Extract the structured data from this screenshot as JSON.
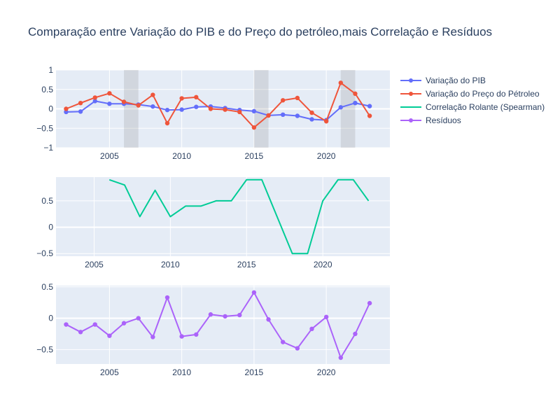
{
  "figure": {
    "title": "Comparação entre Variação do PIB e do Preço do petróleo,mais Correlação e Resíduos"
  },
  "legend": [
    {
      "name": "Variação do PIB",
      "color": "#636efa",
      "marker": true
    },
    {
      "name": "Variação do Preço do Pétroleo",
      "color": "#ef553b",
      "marker": true
    },
    {
      "name": "Correlação Rolante (Spearman)",
      "color": "#00cc96",
      "marker": false
    },
    {
      "name": "Resíduos",
      "color": "#ab63fa",
      "marker": true
    }
  ],
  "chart_data": [
    {
      "type": "line",
      "x": [
        2002,
        2003,
        2004,
        2005,
        2006,
        2007,
        2008,
        2009,
        2010,
        2011,
        2012,
        2013,
        2014,
        2015,
        2016,
        2017,
        2018,
        2019,
        2020,
        2021,
        2022,
        2023
      ],
      "xlim": [
        2001.3,
        2024.4
      ],
      "ylim": [
        -1,
        1
      ],
      "xticks": [
        2005,
        2010,
        2015,
        2020
      ],
      "yticks": [
        -1,
        -0.5,
        0,
        0.5,
        1
      ],
      "ytick_labels": [
        "−1",
        "−0.5",
        "0",
        "0.5",
        "1"
      ],
      "shaded_regions": [
        [
          2006,
          2007
        ],
        [
          2015,
          2016
        ],
        [
          2021,
          2022
        ]
      ],
      "series": [
        {
          "name": "Variação do PIB",
          "color": "#636efa",
          "values": [
            -0.08,
            -0.07,
            0.2,
            0.13,
            0.13,
            0.11,
            0.06,
            -0.03,
            -0.02,
            0.05,
            0.06,
            0.02,
            -0.03,
            -0.06,
            -0.17,
            -0.15,
            -0.18,
            -0.27,
            -0.29,
            0.04,
            0.15,
            0.07
          ]
        },
        {
          "name": "Variação do Preço do Pétroleo",
          "color": "#ef553b",
          "values": [
            0.0,
            0.15,
            0.29,
            0.4,
            0.18,
            0.09,
            0.36,
            -0.37,
            0.27,
            0.3,
            0.0,
            -0.02,
            -0.08,
            -0.48,
            -0.17,
            0.22,
            0.28,
            -0.1,
            -0.32,
            0.67,
            0.39,
            -0.18
          ]
        }
      ]
    },
    {
      "type": "line",
      "x": [
        2006,
        2007,
        2008,
        2009,
        2010,
        2011,
        2012,
        2013,
        2014,
        2015,
        2016,
        2017,
        2018,
        2019,
        2020,
        2021,
        2022,
        2023
      ],
      "xlim": [
        2002.5,
        2024.4
      ],
      "ylim": [
        -0.55,
        0.95
      ],
      "xticks": [
        2005,
        2010,
        2015,
        2020
      ],
      "yticks": [
        -0.5,
        0,
        0.5
      ],
      "ytick_labels": [
        "−0.5",
        "0",
        "0.5"
      ],
      "series": [
        {
          "name": "Correlação Rolante (Spearman)",
          "color": "#00cc96",
          "values": [
            0.9,
            0.8,
            0.2,
            0.7,
            0.2,
            0.4,
            0.4,
            0.5,
            0.5,
            0.9,
            0.9,
            0.2,
            -0.5,
            -0.5,
            0.5,
            0.9,
            0.9,
            0.5
          ]
        }
      ]
    },
    {
      "type": "line",
      "x": [
        2002,
        2003,
        2004,
        2005,
        2006,
        2007,
        2008,
        2009,
        2010,
        2011,
        2012,
        2013,
        2014,
        2015,
        2016,
        2017,
        2018,
        2019,
        2020,
        2021,
        2022,
        2023
      ],
      "xlim": [
        2001.3,
        2024.4
      ],
      "ylim": [
        -0.73,
        0.52
      ],
      "xticks": [
        2005,
        2010,
        2015,
        2020
      ],
      "yticks": [
        -0.5,
        0,
        0.5
      ],
      "ytick_labels": [
        "−0.5",
        "0",
        "0.5"
      ],
      "series": [
        {
          "name": "Resíduos",
          "color": "#ab63fa",
          "values": [
            -0.1,
            -0.22,
            -0.1,
            -0.28,
            -0.08,
            0.0,
            -0.3,
            0.33,
            -0.29,
            -0.26,
            0.06,
            0.03,
            0.05,
            0.41,
            -0.02,
            -0.38,
            -0.48,
            -0.17,
            0.02,
            -0.63,
            -0.25,
            0.24
          ]
        }
      ]
    }
  ]
}
